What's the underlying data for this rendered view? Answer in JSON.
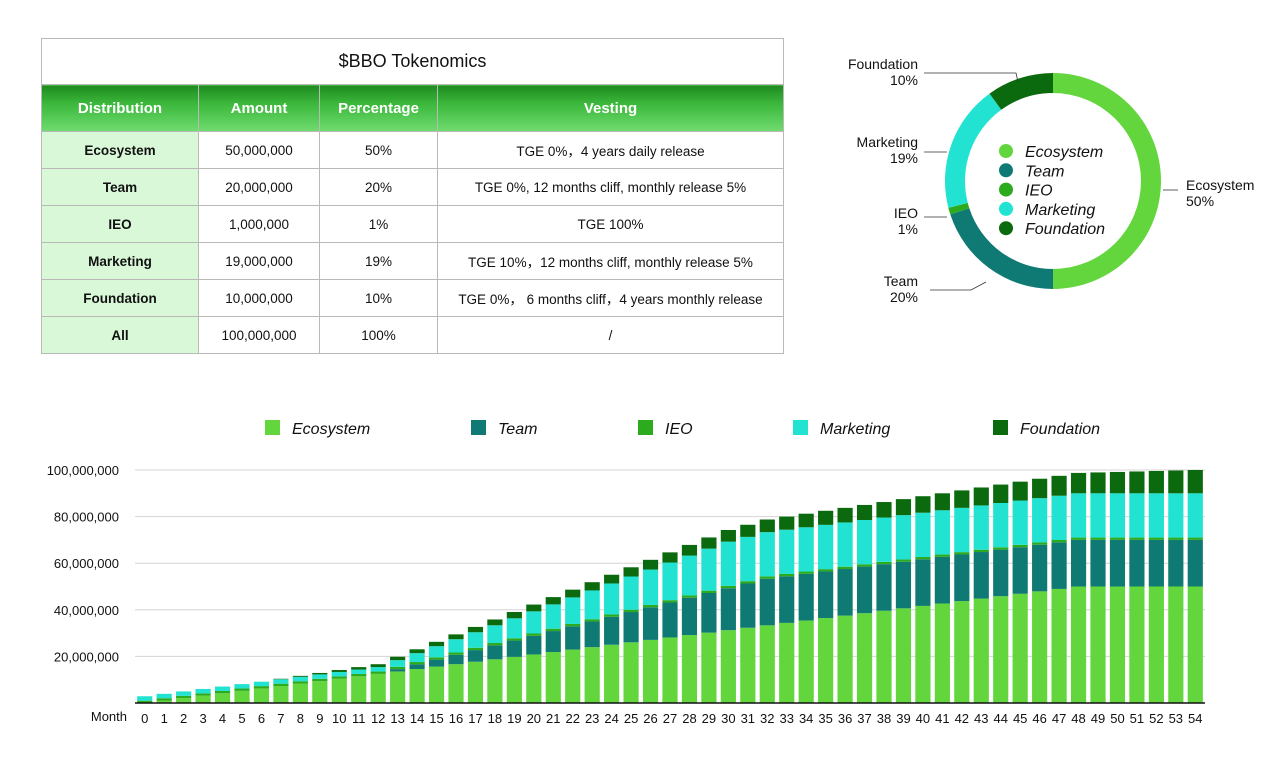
{
  "table": {
    "title": "$BBO Tokenomics",
    "headers": [
      "Distribution",
      "Amount",
      "Percentage",
      "Vesting"
    ],
    "rows": [
      [
        "Ecosystem",
        "50,000,000",
        "50%",
        "TGE 0%，4 years daily release"
      ],
      [
        "Team",
        "20,000,000",
        "20%",
        "TGE 0%, 12 months cliff, monthly release 5%"
      ],
      [
        "IEO",
        "1,000,000",
        "1%",
        "TGE 100%"
      ],
      [
        "Marketing",
        "19,000,000",
        "19%",
        "TGE 10%，12 months cliff, monthly release 5%"
      ],
      [
        "Foundation",
        "10,000,000",
        "10%",
        "TGE 0%， 6 months cliff，4 years monthly release"
      ],
      [
        "All",
        "100,000,000",
        "100%",
        "/"
      ]
    ]
  },
  "colors": {
    "ecosystem": "#63d63d",
    "team": "#0f7a74",
    "ieo": "#2cab1f",
    "marketing": "#22e3d2",
    "foundation": "#0b6a0d"
  },
  "chart_data": [
    {
      "type": "pie",
      "variant": "donut",
      "labels": [
        "Ecosystem",
        "Team",
        "IEO",
        "Marketing",
        "Foundation"
      ],
      "values": [
        50,
        20,
        1,
        19,
        10
      ],
      "callouts": [
        {
          "name": "Ecosystem",
          "pct": "50%"
        },
        {
          "name": "Team",
          "pct": "20%"
        },
        {
          "name": "IEO",
          "pct": "1%"
        },
        {
          "name": "Marketing",
          "pct": "19%"
        },
        {
          "name": "Foundation",
          "pct": "10%"
        }
      ],
      "legend": [
        "Ecosystem",
        "Team",
        "IEO",
        "Marketing",
        "Foundation"
      ],
      "legend_position": "center"
    },
    {
      "type": "bar",
      "stacked": true,
      "xlabel": "Month",
      "ylabel": "",
      "ylim": [
        0,
        100000000
      ],
      "yticks": [
        "20,000,000",
        "40,000,000",
        "60,000,000",
        "80,000,000",
        "100,000,000"
      ],
      "ytick_values": [
        20000000,
        40000000,
        60000000,
        80000000,
        100000000
      ],
      "legend_position": "top",
      "categories": [
        "0",
        "1",
        "2",
        "3",
        "4",
        "5",
        "6",
        "7",
        "8",
        "9",
        "10",
        "11",
        "12",
        "13",
        "14",
        "15",
        "16",
        "17",
        "18",
        "19",
        "20",
        "21",
        "22",
        "23",
        "24",
        "25",
        "26",
        "27",
        "28",
        "29",
        "30",
        "31",
        "32",
        "33",
        "34",
        "35",
        "36",
        "37",
        "38",
        "39",
        "40",
        "41",
        "42",
        "43",
        "44",
        "45",
        "46",
        "47",
        "48",
        "49",
        "50",
        "51",
        "52",
        "53",
        "54"
      ],
      "series": [
        {
          "name": "Ecosystem",
          "values": [
            0,
            1041667,
            2083333,
            3125000,
            4166667,
            5208333,
            6250000,
            7291667,
            8333333,
            9375000,
            10416667,
            11458333,
            12500000,
            13541667,
            14583333,
            15625000,
            16666667,
            17708333,
            18750000,
            19791667,
            20833333,
            21875000,
            22916667,
            23958333,
            25000000,
            26041667,
            27083333,
            28125000,
            29166667,
            30208333,
            31250000,
            32291667,
            33333333,
            34375000,
            35416667,
            36458333,
            37500000,
            38541667,
            39583333,
            40625000,
            41666667,
            42708333,
            43750000,
            44791667,
            45833333,
            46875000,
            47916667,
            48958333,
            50000000,
            50000000,
            50000000,
            50000000,
            50000000,
            50000000,
            50000000
          ]
        },
        {
          "name": "Team",
          "values": [
            0,
            0,
            0,
            0,
            0,
            0,
            0,
            0,
            0,
            0,
            0,
            0,
            0,
            1000000,
            2000000,
            3000000,
            4000000,
            5000000,
            6000000,
            7000000,
            8000000,
            9000000,
            10000000,
            11000000,
            12000000,
            13000000,
            14000000,
            15000000,
            16000000,
            17000000,
            18000000,
            19000000,
            20000000,
            20000000,
            20000000,
            20000000,
            20000000,
            20000000,
            20000000,
            20000000,
            20000000,
            20000000,
            20000000,
            20000000,
            20000000,
            20000000,
            20000000,
            20000000,
            20000000,
            20000000,
            20000000,
            20000000,
            20000000,
            20000000,
            20000000
          ]
        },
        {
          "name": "IEO",
          "values": [
            1000000,
            1000000,
            1000000,
            1000000,
            1000000,
            1000000,
            1000000,
            1000000,
            1000000,
            1000000,
            1000000,
            1000000,
            1000000,
            1000000,
            1000000,
            1000000,
            1000000,
            1000000,
            1000000,
            1000000,
            1000000,
            1000000,
            1000000,
            1000000,
            1000000,
            1000000,
            1000000,
            1000000,
            1000000,
            1000000,
            1000000,
            1000000,
            1000000,
            1000000,
            1000000,
            1000000,
            1000000,
            1000000,
            1000000,
            1000000,
            1000000,
            1000000,
            1000000,
            1000000,
            1000000,
            1000000,
            1000000,
            1000000,
            1000000,
            1000000,
            1000000,
            1000000,
            1000000,
            1000000,
            1000000
          ]
        },
        {
          "name": "Marketing",
          "values": [
            1900000,
            1900000,
            1900000,
            1900000,
            1900000,
            1900000,
            1900000,
            1900000,
            1900000,
            1900000,
            1900000,
            1900000,
            1900000,
            2850000,
            3800000,
            4750000,
            5700000,
            6650000,
            7600000,
            8550000,
            9500000,
            10450000,
            11400000,
            12350000,
            13300000,
            14250000,
            15200000,
            16150000,
            17100000,
            18050000,
            19000000,
            19000000,
            19000000,
            19000000,
            19000000,
            19000000,
            19000000,
            19000000,
            19000000,
            19000000,
            19000000,
            19000000,
            19000000,
            19000000,
            19000000,
            19000000,
            19000000,
            19000000,
            19000000,
            19000000,
            19000000,
            19000000,
            19000000,
            19000000,
            19000000
          ]
        },
        {
          "name": "Foundation",
          "values": [
            0,
            0,
            0,
            0,
            0,
            0,
            0,
            208333,
            416667,
            625000,
            833333,
            1041667,
            1250000,
            1458333,
            1666667,
            1875000,
            2083333,
            2291667,
            2500000,
            2708333,
            2916667,
            3125000,
            3333333,
            3541667,
            3750000,
            3958333,
            4166667,
            4375000,
            4583333,
            4791667,
            5000000,
            5208333,
            5416667,
            5625000,
            5833333,
            6041667,
            6250000,
            6458333,
            6666667,
            6875000,
            7083333,
            7291667,
            7500000,
            7708333,
            7916667,
            8125000,
            8333333,
            8541667,
            8750000,
            8958333,
            9166667,
            9375000,
            9583333,
            9791667,
            10000000
          ]
        }
      ]
    }
  ]
}
